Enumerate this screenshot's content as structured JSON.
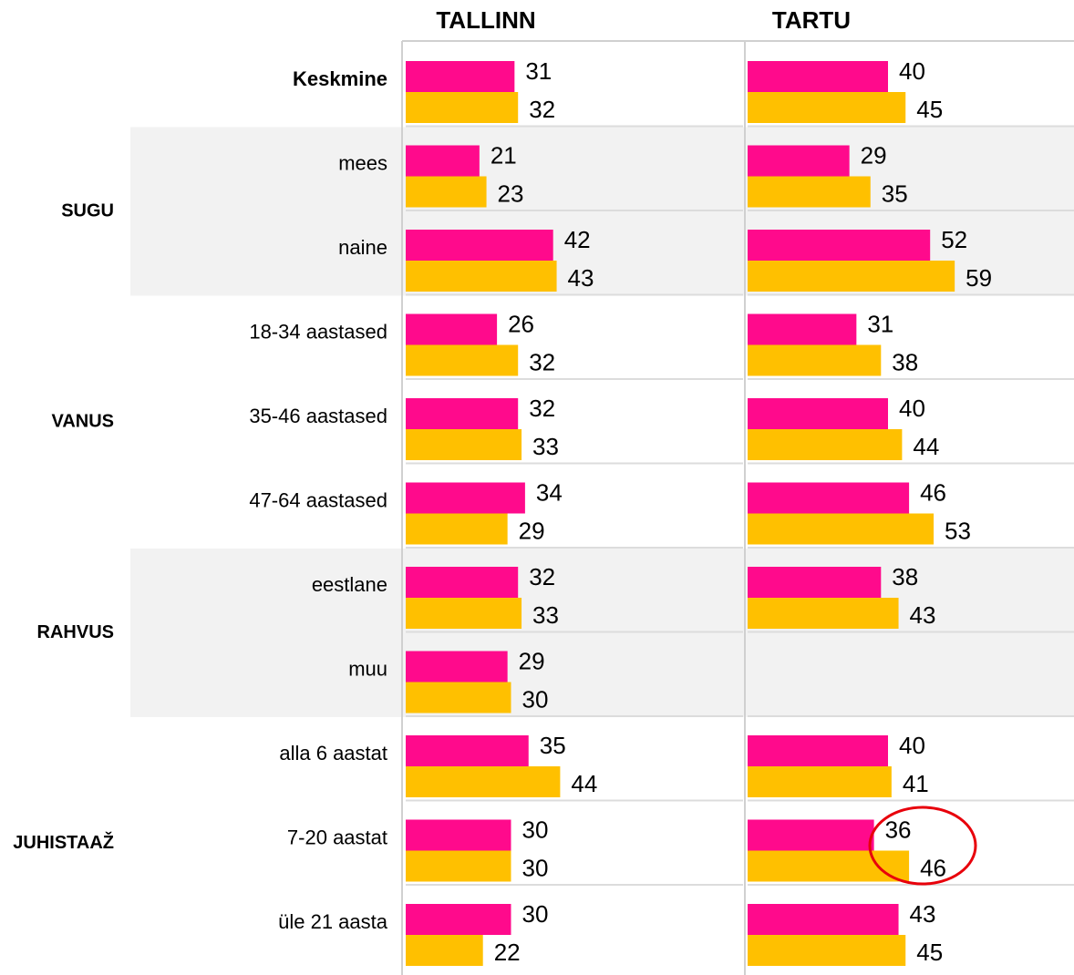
{
  "chart_data": {
    "type": "bar",
    "orientation": "horizontal",
    "groups": [
      {
        "label": null,
        "categories": [
          "Keskmine"
        ]
      },
      {
        "label": "SUGU",
        "categories": [
          "mees",
          "naine"
        ]
      },
      {
        "label": "VANUS",
        "categories": [
          "18-34 aastased",
          "35-46 aastased",
          "47-64 aastased"
        ]
      },
      {
        "label": "RAHVUS",
        "categories": [
          "eestlane",
          "muu"
        ]
      },
      {
        "label": "JUHISTAAŽ",
        "categories": [
          "alla 6 aastat",
          "7-20 aastat",
          "üle 21 aasta"
        ]
      }
    ],
    "panels": [
      {
        "title": "TALLINN",
        "xlim": [
          0,
          100
        ],
        "series": [
          {
            "color": "#ff0a8c",
            "values": [
              31,
              21,
              42,
              26,
              32,
              34,
              32,
              29,
              35,
              30,
              30
            ]
          },
          {
            "color": "#ffc000",
            "values": [
              32,
              23,
              43,
              32,
              33,
              29,
              33,
              30,
              44,
              30,
              22
            ]
          }
        ]
      },
      {
        "title": "TARTU",
        "xlim": [
          0,
          100
        ],
        "series": [
          {
            "color": "#ff0a8c",
            "values": [
              40,
              29,
              52,
              31,
              40,
              46,
              38,
              null,
              40,
              36,
              43
            ]
          },
          {
            "color": "#ffc000",
            "values": [
              45,
              35,
              59,
              38,
              44,
              53,
              43,
              null,
              41,
              46,
              45
            ]
          }
        ]
      }
    ]
  }
}
